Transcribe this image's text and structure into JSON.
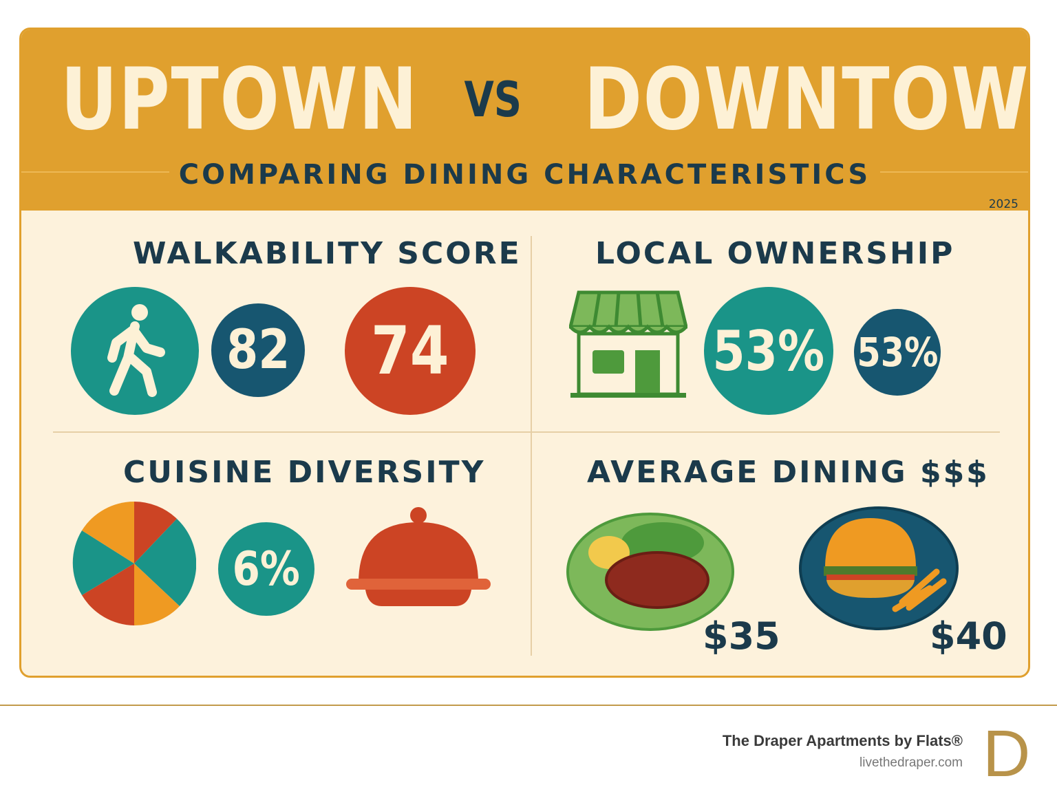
{
  "header": {
    "title_left": "UPTOWN",
    "vs": "VS",
    "title_right": "DOWNTOWN",
    "subtitle": "COMPARING DINING CHARACTERISTICS",
    "year": "2025"
  },
  "walkability": {
    "title": "WALKABILITY SCORE",
    "icon": "walking-person-icon",
    "uptown": "82",
    "downtown": "74"
  },
  "ownership": {
    "title": "LOCAL OWNERSHIP",
    "icon": "storefront-icon",
    "uptown": "53%",
    "downtown": "53%"
  },
  "cuisine": {
    "title": "CUISINE DIVERSITY",
    "icon": "pie-chart-icon",
    "value": "6%",
    "icon2": "food-cloche-icon"
  },
  "dining": {
    "title": "AVERAGE DINING $$$",
    "uptown_icon": "steak-plate-icon",
    "downtown_icon": "burger-plate-icon",
    "uptown": "$35",
    "downtown": "$40"
  },
  "colors": {
    "header": "#E0A02E",
    "navy": "#1B3A4B",
    "teal": "#1A9488",
    "blue": "#175670",
    "red": "#CC4424",
    "orange": "#EF9A22",
    "green": "#4E9A3C",
    "gold": "#B8934A"
  },
  "footer": {
    "brand": "The Draper Apartments by Flats®",
    "url": "livethedraper.com",
    "logo": "D"
  }
}
